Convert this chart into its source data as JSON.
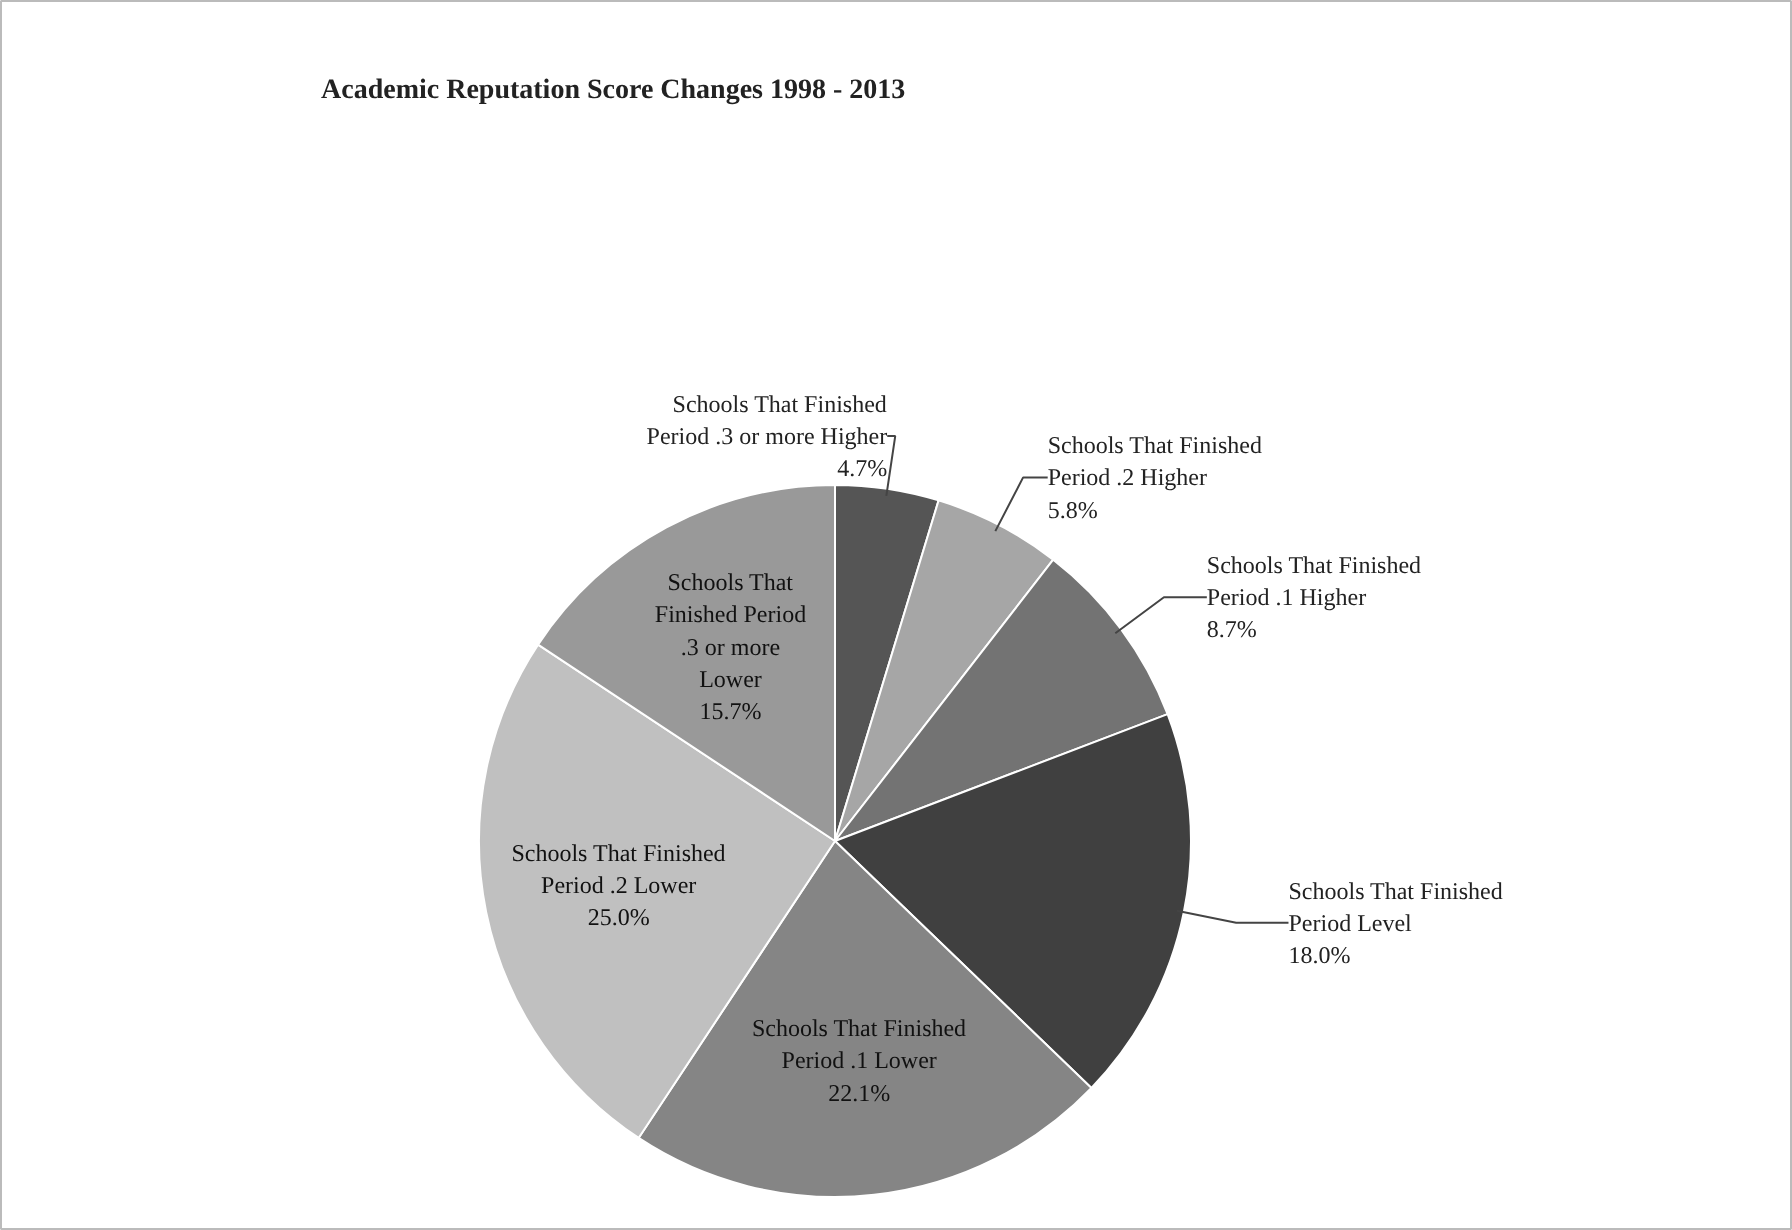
{
  "chart_data": {
    "type": "pie",
    "title": "Academic Reputation Score Changes 1998 - 2013",
    "categories": [
      "Schools That Finished\nPeriod .3 or more Higher",
      "Schools That Finished\nPeriod .2 Higher",
      "Schools That Finished\nPeriod .1 Higher",
      "Schools That Finished\nPeriod Level",
      "Schools That Finished\nPeriod .1 Lower",
      "Schools That Finished\nPeriod .2 Lower",
      "Schools That\nFinished Period\n.3 or more\nLower"
    ],
    "values": [
      4.7,
      5.8,
      8.7,
      18.0,
      22.1,
      25.0,
      15.7
    ],
    "colors": [
      "#555555",
      "#a6a6a6",
      "#737373",
      "#404040",
      "#858585",
      "#c0c0c0",
      "#999999"
    ],
    "value_labels": [
      "4.7%",
      "5.8%",
      "8.7%",
      "18.0%",
      "22.1%",
      "25.0%",
      "15.7%"
    ]
  }
}
